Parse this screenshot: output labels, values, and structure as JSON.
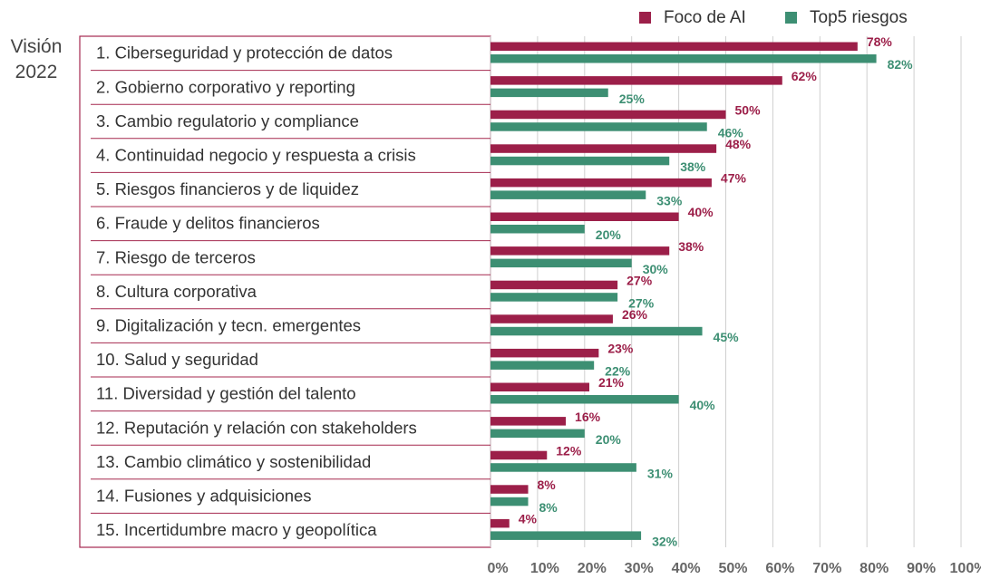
{
  "chart_data": {
    "type": "bar",
    "orientation": "horizontal",
    "annotation": "Visión 2022",
    "categories": [
      "1. Ciberseguridad y protección de datos",
      "2. Gobierno corporativo y reporting",
      "3. Cambio regulatorio y compliance",
      "4. Continuidad negocio y respuesta a crisis",
      "5. Riesgos financieros y de liquidez",
      "6. Fraude y delitos financieros",
      "7. Riesgo de terceros",
      "8. Cultura corporativa",
      "9. Digitalización y tecn. emergentes",
      "10. Salud y seguridad",
      "11. Diversidad y gestión del talento",
      "12. Reputación y relación con stakeholders",
      "13. Cambio climático y sostenibilidad",
      "14. Fusiones y adquisiciones",
      "15. Incertidumbre macro y geopolítica"
    ],
    "series": [
      {
        "name": "Foco de AI",
        "color": "#9c1f49",
        "values": [
          78,
          62,
          50,
          48,
          47,
          40,
          38,
          27,
          26,
          23,
          21,
          16,
          12,
          8,
          4
        ],
        "value_labels": [
          "78%",
          "62%",
          "50%",
          "48%",
          "47%",
          "40%",
          "38%",
          "27%",
          "26%",
          "23%",
          "21%",
          "16%",
          "12%",
          "8%",
          "4%"
        ]
      },
      {
        "name": "Top5 riesgos",
        "color": "#3d8f73",
        "values": [
          82,
          25,
          46,
          38,
          33,
          20,
          30,
          27,
          45,
          22,
          40,
          20,
          31,
          8,
          32
        ],
        "value_labels": [
          "82%",
          "25%",
          "46%",
          "38%",
          "33%",
          "20%",
          "30%",
          "27%",
          "45%",
          "22%",
          "40%",
          "20%",
          "31%",
          "8%",
          "32%"
        ]
      }
    ],
    "xlim": [
      0,
      100
    ],
    "xticks": [
      {
        "value": 0,
        "label": "0%"
      },
      {
        "value": 10,
        "label": "10%"
      },
      {
        "value": 20,
        "label": "20%"
      },
      {
        "value": 30,
        "label": "30%"
      },
      {
        "value": 40,
        "label": "40%"
      },
      {
        "value": 50,
        "label": "50%"
      },
      {
        "value": 60,
        "label": "60%"
      },
      {
        "value": 70,
        "label": "70%"
      },
      {
        "value": 80,
        "label": "80%"
      },
      {
        "value": 90,
        "label": "90%"
      },
      {
        "value": 100,
        "label": "100%"
      }
    ],
    "grid": true,
    "legend": "top-right"
  }
}
